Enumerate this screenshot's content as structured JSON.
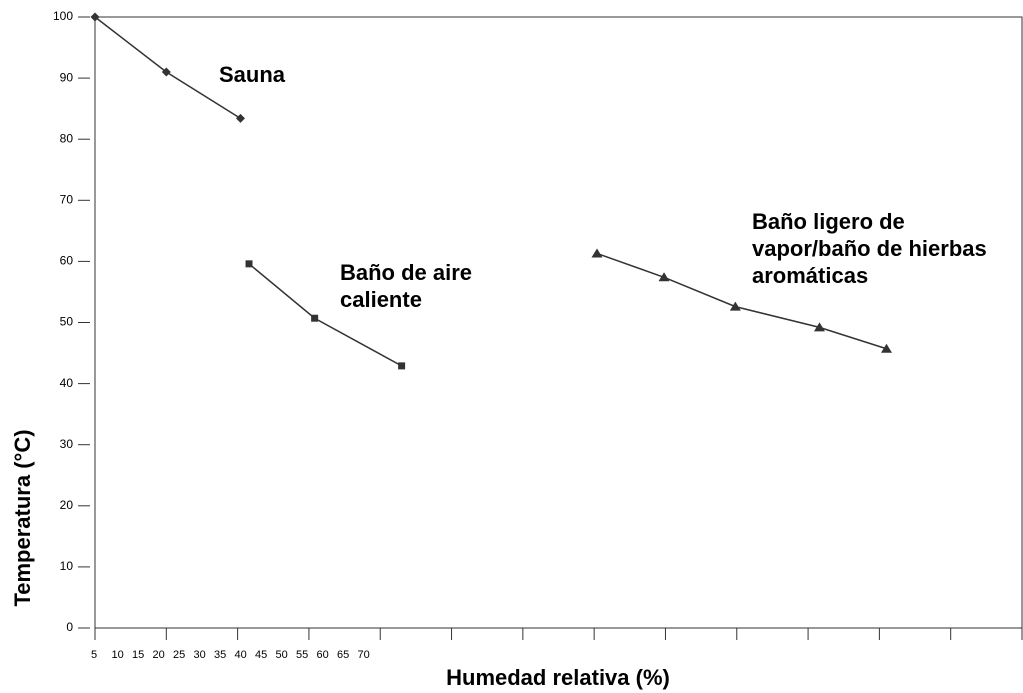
{
  "chart_data": {
    "type": "line",
    "x_label": "Humedad relativa (%)",
    "y_label": "Temperatura (°C)",
    "xlim": [
      5,
      70
    ],
    "xticks": [
      5,
      10,
      15,
      20,
      25,
      30,
      35,
      40,
      45,
      50,
      55,
      60,
      65,
      70
    ],
    "ylim": [
      0,
      100
    ],
    "yticks": [
      0,
      10,
      20,
      30,
      40,
      50,
      60,
      70,
      80,
      90,
      100
    ],
    "series": [
      {
        "name": "Sauna",
        "color": "#333333",
        "marker": "diamond",
        "x": [
          5,
          10,
          15.2
        ],
        "values": [
          100,
          91,
          83.4
        ]
      },
      {
        "name": "Baño de aire caliente",
        "color": "#333333",
        "marker": "square",
        "x": [
          15.8,
          20.4,
          26.5
        ],
        "values": [
          59.6,
          50.7,
          42.9
        ]
      },
      {
        "name": "Baño ligero de vapor/baño de hierbas aromáticas",
        "color": "#333333",
        "marker": "triangle",
        "x": [
          40.2,
          44.9,
          49.9,
          55.8,
          60.5
        ],
        "values": [
          61.3,
          57.4,
          52.6,
          49.2,
          45.7
        ]
      }
    ]
  }
}
